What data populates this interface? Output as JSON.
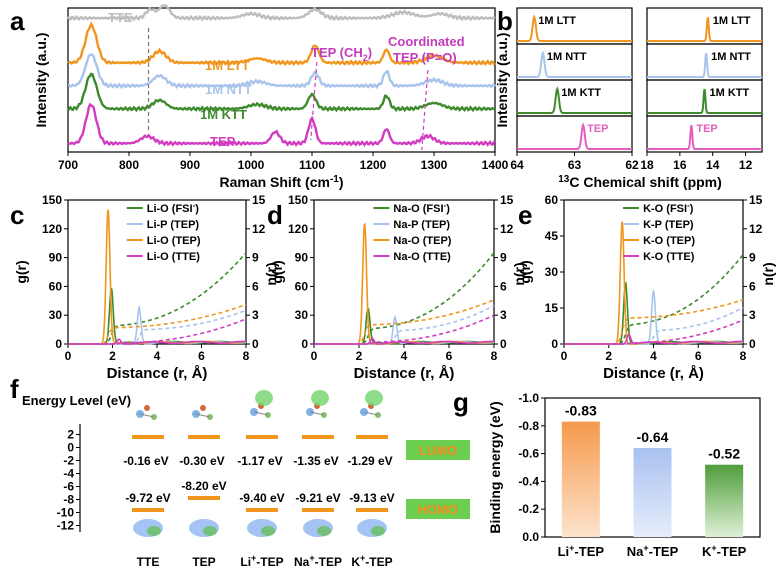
{
  "panels": {
    "a": "a",
    "b": "b",
    "c": "c",
    "d": "d",
    "e": "e",
    "f": "f",
    "g": "g"
  },
  "chart_data": [
    {
      "id": "a",
      "type": "line",
      "xlabel": "Raman Shift (cm",
      "xlabel_sup": "-1",
      "xlabel_end": ")",
      "ylabel": "Intensity (a.u.)",
      "xlim": [
        700,
        1400
      ],
      "xticks": [
        700,
        800,
        900,
        1000,
        1100,
        1200,
        1300,
        1400
      ],
      "series": [
        {
          "name": "TTE",
          "color": "#bdbdbd",
          "base": 0.93,
          "peaks": [
            [
              835,
              0.06,
              10
            ],
            [
              858,
              0.09,
              12
            ],
            [
              1000,
              0.03,
              20
            ],
            [
              1105,
              0.06,
              15
            ],
            [
              1250,
              0.04,
              25
            ],
            [
              1310,
              0.03,
              20
            ]
          ]
        },
        {
          "name": "1M LTT",
          "color": "#f0961e",
          "base": 0.62,
          "peaks": [
            [
              738,
              0.26,
              13
            ],
            [
              850,
              0.08,
              15
            ],
            [
              1010,
              0.03,
              20
            ],
            [
              1105,
              0.12,
              9
            ],
            [
              1222,
              0.09,
              7
            ],
            [
              1300,
              0.05,
              20
            ]
          ]
        },
        {
          "name": "1M NTT",
          "color": "#a8c4ec",
          "base": 0.46,
          "peaks": [
            [
              738,
              0.22,
              13
            ],
            [
              850,
              0.07,
              15
            ],
            [
              1010,
              0.03,
              20
            ],
            [
              1105,
              0.09,
              9
            ],
            [
              1222,
              0.1,
              7
            ],
            [
              1300,
              0.04,
              20
            ]
          ]
        },
        {
          "name": "1M KTT",
          "color": "#3e8a2c",
          "base": 0.3,
          "peaks": [
            [
              738,
              0.24,
              13
            ],
            [
              850,
              0.06,
              15
            ],
            [
              1010,
              0.03,
              20
            ],
            [
              1100,
              0.1,
              9
            ],
            [
              1222,
              0.09,
              7
            ],
            [
              1300,
              0.04,
              20
            ]
          ]
        },
        {
          "name": "TEP",
          "color": "#d23cc0",
          "base": 0.06,
          "peaks": [
            [
              738,
              0.27,
              12
            ],
            [
              830,
              0.05,
              15
            ],
            [
              1040,
              0.08,
              10
            ],
            [
              1100,
              0.17,
              8
            ],
            [
              1222,
              0.1,
              7
            ],
            [
              1290,
              0.05,
              15
            ]
          ]
        }
      ],
      "annotations": {
        "tep_ch2": "TEP (CH",
        "tep_ch2_sub": "2",
        "tep_ch2_end": ")",
        "coord_1": "Coordinated",
        "coord_2": "TEP (P=O)"
      }
    },
    {
      "id": "b",
      "type": "line",
      "xlabel": "13C Chemical shift (ppm)",
      "xlabel_sup": "13",
      "xlabel_main": "C Chemical shift (ppm)",
      "ylabel": "Intensity (a.u.)",
      "left": {
        "xlim": [
          64,
          62
        ],
        "xticks": [
          64,
          63,
          62
        ],
        "rows": [
          {
            "name": "1M LTT",
            "color": "#f0961e",
            "peak": 63.7
          },
          {
            "name": "1M NTT",
            "color": "#a8c4ec",
            "peak": 63.55
          },
          {
            "name": "1M KTT",
            "color": "#3e8a2c",
            "peak": 63.3
          },
          {
            "name": "TEP",
            "color": "#e45fbf",
            "peak": 62.85
          }
        ]
      },
      "right": {
        "xlim": [
          18,
          11
        ],
        "xticks": [
          18,
          16,
          14,
          12
        ],
        "rows": [
          {
            "name": "1M LTT",
            "color": "#f0961e",
            "peak": 14.3
          },
          {
            "name": "1M NTT",
            "color": "#a8c4ec",
            "peak": 14.4
          },
          {
            "name": "1M KTT",
            "color": "#3e8a2c",
            "peak": 14.5
          },
          {
            "name": "TEP",
            "color": "#e45fbf",
            "peak": 15.3
          }
        ]
      }
    },
    {
      "id": "c",
      "type": "line",
      "xlabel": "Distance (r, Å)",
      "ylabel": "g(r)",
      "ylabel2": "n(r)",
      "xlim": [
        0,
        8
      ],
      "ylim": [
        0,
        150
      ],
      "y2lim": [
        0,
        15
      ],
      "xticks": [
        0,
        2,
        4,
        6,
        8
      ],
      "yticks": [
        0,
        30,
        60,
        90,
        120,
        150
      ],
      "y2ticks": [
        0,
        3,
        6,
        9,
        12,
        15
      ],
      "series": [
        {
          "name": "Li-O (FSI",
          "sup": "-",
          "name_end": ")",
          "color": "#3e8a2c",
          "peak_r": 1.95,
          "peak_g": 58,
          "n_end": 9.5,
          "n_plateau": 1.9
        },
        {
          "name": "Li-P (TEP)",
          "color": "#a8c4ec",
          "peak_r": 3.2,
          "peak_g": 38,
          "n_end": 3.5,
          "n_plateau": 1.5
        },
        {
          "name": "Li-O (TEP)",
          "color": "#f0961e",
          "peak_r": 1.8,
          "peak_g": 140,
          "n_end": 4.1,
          "n_plateau": 1.7
        },
        {
          "name": "Li-O (TTE)",
          "color": "#d23cc0",
          "peak_r": 2.3,
          "peak_g": 5,
          "n_end": 2.6,
          "n_plateau": 0.1
        }
      ]
    },
    {
      "id": "d",
      "type": "line",
      "xlabel": "Distance (r, Å)",
      "ylabel": "g(r)",
      "ylabel2": "n(r)",
      "xlim": [
        0,
        8
      ],
      "ylim": [
        0,
        150
      ],
      "y2lim": [
        0,
        15
      ],
      "xticks": [
        0,
        2,
        4,
        6,
        8
      ],
      "yticks": [
        0,
        30,
        60,
        90,
        120,
        150
      ],
      "y2ticks": [
        0,
        3,
        6,
        9,
        12,
        15
      ],
      "series": [
        {
          "name": "Na-O (FSI",
          "sup": "-",
          "name_end": ")",
          "color": "#3e8a2c",
          "peak_r": 2.4,
          "peak_g": 37,
          "n_end": 9.5,
          "n_plateau": 1.6
        },
        {
          "name": "Na-P (TEP)",
          "color": "#a8c4ec",
          "peak_r": 3.6,
          "peak_g": 28,
          "n_end": 4.0,
          "n_plateau": 1.4
        },
        {
          "name": "Na-O (TEP)",
          "color": "#f0961e",
          "peak_r": 2.25,
          "peak_g": 125,
          "n_end": 4.6,
          "n_plateau": 2.0
        },
        {
          "name": "Na-O (TTE)",
          "color": "#d23cc0",
          "peak_r": 2.6,
          "peak_g": 6,
          "n_end": 3.0,
          "n_plateau": 0.2
        }
      ]
    },
    {
      "id": "e",
      "type": "line",
      "xlabel": "Distance (r, Å)",
      "ylabel": "g(r)",
      "ylabel2": "n(r)",
      "xlim": [
        0,
        8
      ],
      "ylim": [
        0,
        60
      ],
      "y2lim": [
        0,
        15
      ],
      "xticks": [
        0,
        2,
        4,
        6,
        8
      ],
      "yticks": [
        0,
        15,
        30,
        45,
        60
      ],
      "y2ticks": [
        0,
        3,
        6,
        9,
        12,
        15
      ],
      "series": [
        {
          "name": "K-O (FSI",
          "sup": "-",
          "name_end": ")",
          "color": "#3e8a2c",
          "peak_r": 2.75,
          "peak_g": 25,
          "n_end": 9.3,
          "n_plateau": 2.0
        },
        {
          "name": "K-P (TEP)",
          "color": "#a8c4ec",
          "peak_r": 4.0,
          "peak_g": 22,
          "n_end": 3.8,
          "n_plateau": 1.4
        },
        {
          "name": "K-O (TEP)",
          "color": "#f0961e",
          "peak_r": 2.6,
          "peak_g": 51,
          "n_end": 4.6,
          "n_plateau": 2.7
        },
        {
          "name": "K-O (TTE)",
          "color": "#d23cc0",
          "peak_r": 2.9,
          "peak_g": 4,
          "n_end": 2.5,
          "n_plateau": 0.1
        }
      ]
    },
    {
      "id": "f",
      "type": "diagram",
      "ylabel": "Energy Level (eV)",
      "ylim": [
        -13,
        3
      ],
      "yticks": [
        2,
        0,
        -2,
        -4,
        -6,
        -8,
        -10,
        -12
      ],
      "species": [
        "TTE",
        "TEP",
        "Li",
        "Na",
        "K"
      ],
      "species_sup": "+",
      "species_suffix": "-TEP",
      "lumo": [
        -0.16,
        -0.3,
        -1.17,
        -1.35,
        -1.29
      ],
      "homo": [
        -9.72,
        -8.2,
        -9.4,
        -9.21,
        -9.13
      ],
      "lumo_labels": [
        "-0.16 eV",
        "-0.30 eV",
        "-1.17 eV",
        "-1.35 eV",
        "-1.29 eV"
      ],
      "homo_labels": [
        "-9.72 eV",
        "-8.20 eV",
        "-9.40 eV",
        "-9.21 eV",
        "-9.13 eV"
      ],
      "lumo_tag": "LUMO",
      "homo_tag": "HOMO"
    },
    {
      "id": "g",
      "type": "bar",
      "ylabel": "Binding energy (eV)",
      "ylim": [
        0,
        -1.0
      ],
      "yticks": [
        0.0,
        -0.2,
        -0.4,
        -0.6,
        -0.8,
        -1.0
      ],
      "ytick_labels": [
        "0.0",
        "-0.2",
        "-0.4",
        "-0.6",
        "-0.8",
        "-1.0"
      ],
      "categories": [
        "Li",
        "Na",
        "K"
      ],
      "category_sup": "+",
      "category_suffix": "-TEP",
      "values": [
        -0.83,
        -0.64,
        -0.52
      ],
      "value_labels": [
        "-0.83",
        "-0.64",
        "-0.52"
      ],
      "colors": [
        "#f7b37a",
        "#b9cdf3",
        "#7fc06b"
      ]
    }
  ]
}
